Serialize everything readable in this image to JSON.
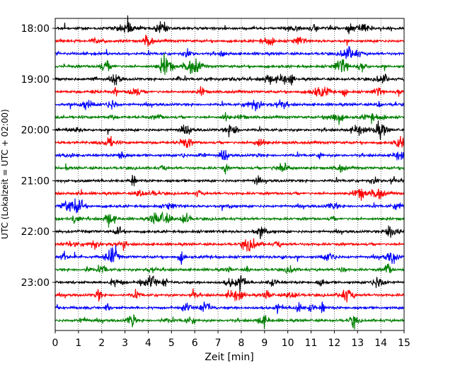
{
  "chart_data": {
    "type": "line",
    "title": "",
    "xlabel": "Zeit  [min]",
    "ylabel": "UTC (Lokalzeit = UTC + 02:00)",
    "xlim": [
      0,
      15
    ],
    "x_ticks": [
      "0",
      "1",
      "2",
      "3",
      "4",
      "5",
      "6",
      "7",
      "8",
      "9",
      "10",
      "11",
      "12",
      "13",
      "14",
      "15"
    ],
    "y_ticks": [
      {
        "label": "18:00",
        "trace_index": 0
      },
      {
        "label": "19:00",
        "trace_index": 4
      },
      {
        "label": "20:00",
        "trace_index": 8
      },
      {
        "label": "21:00",
        "trace_index": 12
      },
      {
        "label": "22:00",
        "trace_index": 16
      },
      {
        "label": "23:00",
        "trace_index": 20
      }
    ],
    "trace_interval_min": 15,
    "trace_count": 24,
    "trace_colors": [
      "#000000",
      "#ff0000",
      "#0000ff",
      "#008000"
    ],
    "grid": "vertical dotted at each minute",
    "legend": "none"
  }
}
